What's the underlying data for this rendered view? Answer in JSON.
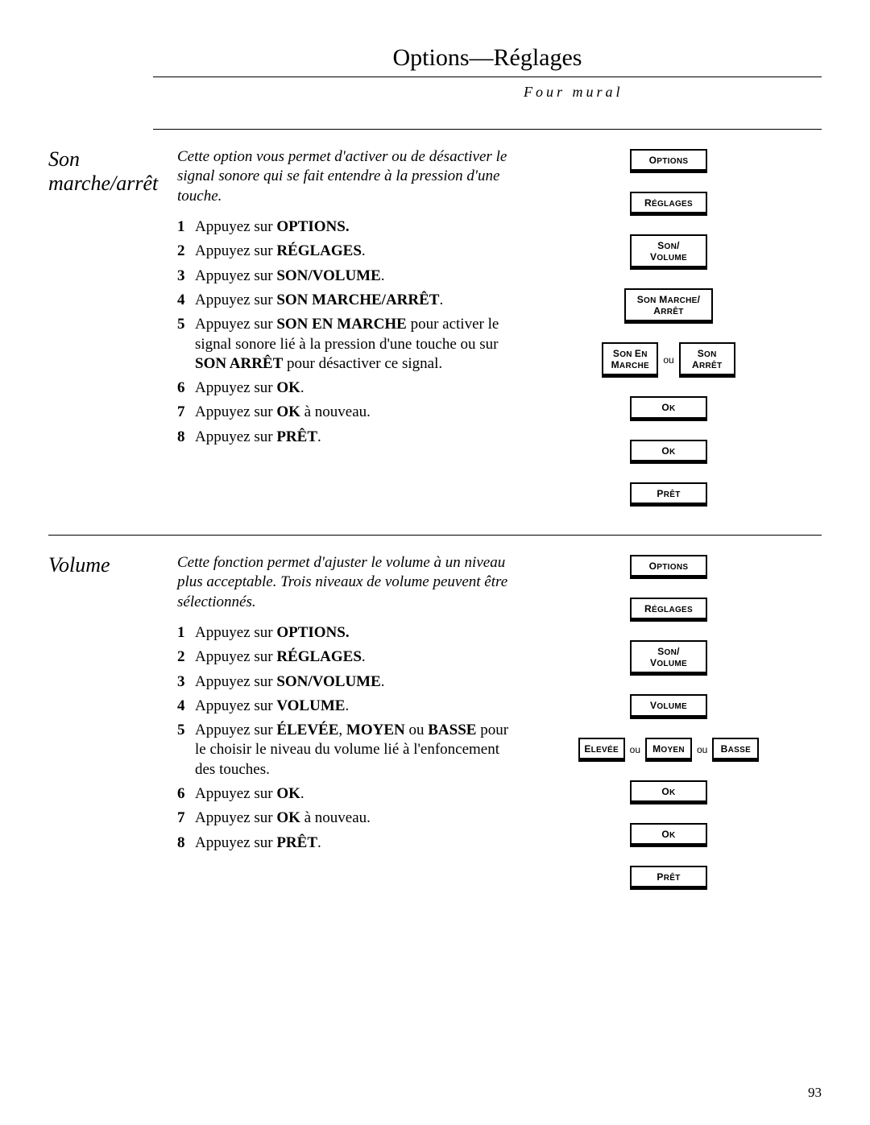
{
  "header": {
    "title": "Options—Réglages",
    "subtitle": "Four mural"
  },
  "sections": [
    {
      "title": "Son marche/arrêt",
      "intro": "Cette option vous permet d'activer ou de désactiver le signal sonore qui se fait entendre à la pression d'une touche.",
      "stepsHtml": [
        "Appuyez sur <b>OPTIONS.</b>",
        "Appuyez sur <b>RÉGLAGES</b>.",
        "Appuyez sur <b>SON/VOLUME</b>.",
        "Appuyez sur <b>SON MARCHE/ARRÊT</b>.",
        "Appuyez sur <b>SON EN MARCHE</b> pour activer le signal sonore lié à la pression d'une touche ou sur <b>SON ARRÊT</b> pour désactiver ce signal.",
        "Appuyez sur <b>OK</b>.",
        "Appuyez sur <b>OK</b> à nouveau.",
        "Appuyez sur <b>PRÊT</b>."
      ],
      "buttons": [
        {
          "type": "single",
          "cls": "w-md",
          "html": "<span class='smallcaps'><span class='cap'>O</span><span class='low'>PTIONS</span></span>"
        },
        {
          "type": "single",
          "cls": "w-md",
          "html": "<span class='smallcaps'><span class='cap'>R</span><span class='low'>ÉGLAGES</span></span>"
        },
        {
          "type": "single",
          "cls": "w-md twoline",
          "html": "<span class='smallcaps'><span class='cap'>S</span><span class='low'>ON</span>/<br><span class='cap'>V</span><span class='low'>OLUME</span></span>"
        },
        {
          "type": "single",
          "cls": "w-lg twoline",
          "html": "<span class='smallcaps'><span class='cap'>S</span><span class='low'>ON</span> <span class='cap'>M</span><span class='low'>ARCHE</span>/<br><span class='cap'>A</span><span class='low'>RRÊT</span></span>"
        },
        {
          "type": "row",
          "items": [
            {
              "cls": "w-sm twoline",
              "html": "<span class='smallcaps'><span class='cap'>S</span><span class='low'>ON</span> <span class='cap'>E</span><span class='low'>N</span><br><span class='cap'>M</span><span class='low'>ARCHE</span></span>"
            },
            {
              "sep": "ou"
            },
            {
              "cls": "w-sm twoline",
              "html": "<span class='smallcaps'><span class='cap'>S</span><span class='low'>ON</span><br><span class='cap'>A</span><span class='low'>RRÊT</span></span>"
            }
          ]
        },
        {
          "type": "single",
          "cls": "w-md",
          "html": "<span class='smallcaps'><span class='cap'>O</span><span class='low'>K</span></span>"
        },
        {
          "type": "single",
          "cls": "w-md",
          "html": "<span class='smallcaps'><span class='cap'>O</span><span class='low'>K</span></span>"
        },
        {
          "type": "single",
          "cls": "w-md",
          "html": "<span class='smallcaps'><span class='cap'>P</span><span class='low'>RÊT</span></span>"
        }
      ]
    },
    {
      "title": "Volume",
      "intro": "Cette fonction permet d'ajuster le volume à un niveau plus acceptable. Trois niveaux de volume peuvent être sélectionnés.",
      "stepsHtml": [
        "Appuyez sur <b>OPTIONS.</b>",
        "Appuyez sur <b>RÉGLAGES</b>.",
        "Appuyez sur <b>SON/VOLUME</b>.",
        "Appuyez sur <b>VOLUME</b>.",
        "Appuyez sur <b>ÉLEVÉE</b>, <b>MOYEN</b> ou <b>BASSE</b> pour le choisir le niveau du volume lié à l'enfoncement des touches.",
        "Appuyez sur <b>OK</b>.",
        "Appuyez sur <b>OK</b> à nouveau.",
        "Appuyez sur <b>PRÊT</b>."
      ],
      "buttons": [
        {
          "type": "single",
          "cls": "w-md",
          "html": "<span class='smallcaps'><span class='cap'>O</span><span class='low'>PTIONS</span></span>"
        },
        {
          "type": "single",
          "cls": "w-md",
          "html": "<span class='smallcaps'><span class='cap'>R</span><span class='low'>ÉGLAGES</span></span>"
        },
        {
          "type": "single",
          "cls": "w-md twoline",
          "html": "<span class='smallcaps'><span class='cap'>S</span><span class='low'>ON</span>/<br><span class='cap'>V</span><span class='low'>OLUME</span></span>"
        },
        {
          "type": "single",
          "cls": "w-md",
          "html": "<span class='smallcaps'><span class='cap'>V</span><span class='low'>OLUME</span></span>"
        },
        {
          "type": "row",
          "items": [
            {
              "cls": "w-xs",
              "html": "<span class='smallcaps'><span class='cap'>E</span><span class='low'>LEVÉE</span></span>"
            },
            {
              "sep": "ou"
            },
            {
              "cls": "w-xs",
              "html": "<span class='smallcaps'><span class='cap'>M</span><span class='low'>OYEN</span></span>"
            },
            {
              "sep": "ou"
            },
            {
              "cls": "w-xs",
              "html": "<span class='smallcaps'><span class='cap'>B</span><span class='low'>ASSE</span></span>"
            }
          ]
        },
        {
          "type": "single",
          "cls": "w-md",
          "html": "<span class='smallcaps'><span class='cap'>O</span><span class='low'>K</span></span>"
        },
        {
          "type": "single",
          "cls": "w-md",
          "html": "<span class='smallcaps'><span class='cap'>O</span><span class='low'>K</span></span>"
        },
        {
          "type": "single",
          "cls": "w-md",
          "html": "<span class='smallcaps'><span class='cap'>P</span><span class='low'>RÊT</span></span>"
        }
      ]
    }
  ],
  "pageNumber": "93"
}
